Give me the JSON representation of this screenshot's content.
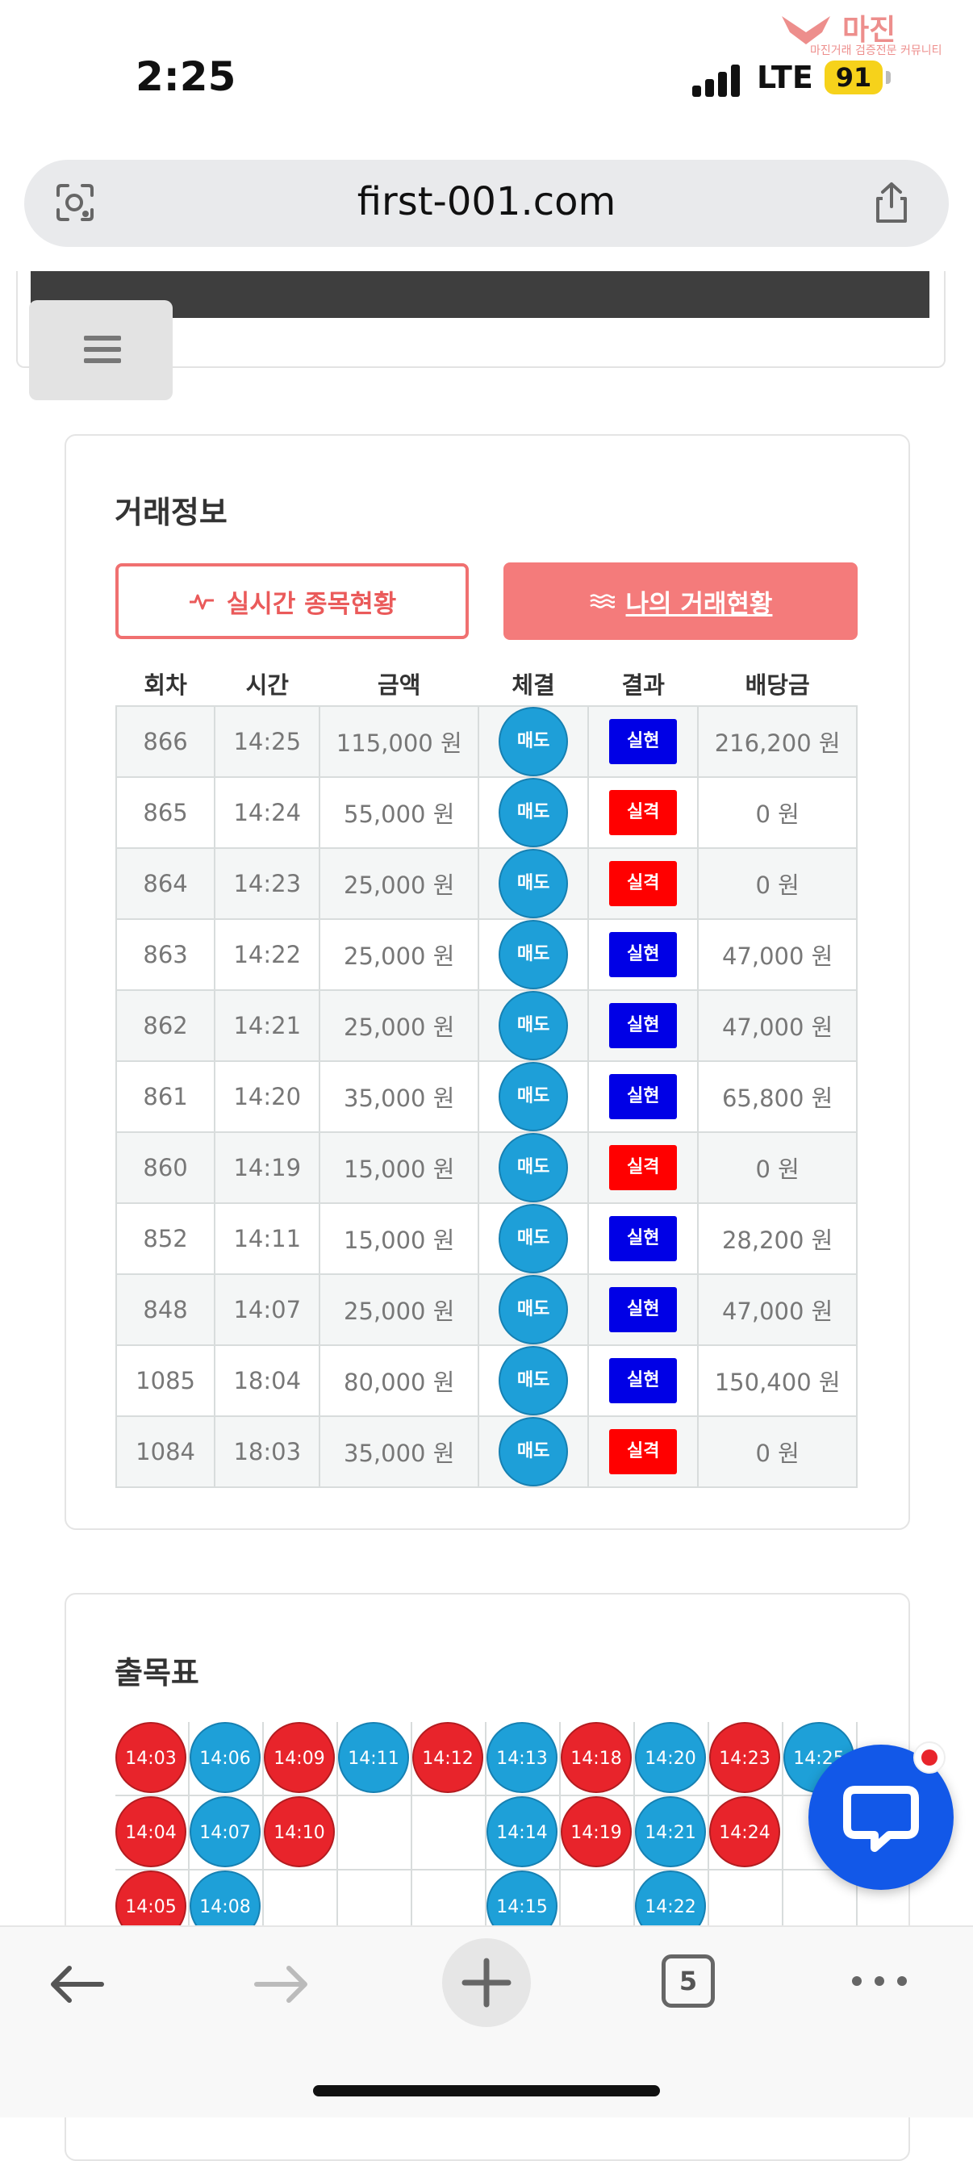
{
  "status_bar": {
    "time": "2:25",
    "network": "LTE",
    "battery": "91"
  },
  "watermark": {
    "brand": "마진",
    "tagline": "마진거래 검증전문 커뮤니티"
  },
  "browser": {
    "url": "first-001.com",
    "tab_count": "5"
  },
  "trade_info": {
    "title": "거래정보",
    "btn_live": "실시간 종목현황",
    "btn_mine": "나의 거래현황",
    "headers": [
      "회차",
      "시간",
      "금액",
      "체결",
      "결과",
      "배당금"
    ],
    "rows": [
      {
        "round": "866",
        "time": "14:25",
        "amount": "115,000 원",
        "exec": "매도",
        "result": "실현",
        "payout": "216,200 원"
      },
      {
        "round": "865",
        "time": "14:24",
        "amount": "55,000 원",
        "exec": "매도",
        "result": "실격",
        "payout": "0 원"
      },
      {
        "round": "864",
        "time": "14:23",
        "amount": "25,000 원",
        "exec": "매도",
        "result": "실격",
        "payout": "0 원"
      },
      {
        "round": "863",
        "time": "14:22",
        "amount": "25,000 원",
        "exec": "매도",
        "result": "실현",
        "payout": "47,000 원"
      },
      {
        "round": "862",
        "time": "14:21",
        "amount": "25,000 원",
        "exec": "매도",
        "result": "실현",
        "payout": "47,000 원"
      },
      {
        "round": "861",
        "time": "14:20",
        "amount": "35,000 원",
        "exec": "매도",
        "result": "실현",
        "payout": "65,800 원"
      },
      {
        "round": "860",
        "time": "14:19",
        "amount": "15,000 원",
        "exec": "매도",
        "result": "실격",
        "payout": "0 원"
      },
      {
        "round": "852",
        "time": "14:11",
        "amount": "15,000 원",
        "exec": "매도",
        "result": "실현",
        "payout": "28,200 원"
      },
      {
        "round": "848",
        "time": "14:07",
        "amount": "25,000 원",
        "exec": "매도",
        "result": "실현",
        "payout": "47,000 원"
      },
      {
        "round": "1085",
        "time": "18:04",
        "amount": "80,000 원",
        "exec": "매도",
        "result": "실현",
        "payout": "150,400 원"
      },
      {
        "round": "1084",
        "time": "18:03",
        "amount": "35,000 원",
        "exec": "매도",
        "result": "실격",
        "payout": "0 원"
      }
    ]
  },
  "colors": {
    "realized": "#0000e6",
    "failed": "#ff0000",
    "sell": "#1e9fd8",
    "accent": "#f47b7b"
  },
  "result_chart": {
    "title": "출목표",
    "columns": [
      [
        {
          "label": "14:03",
          "c": "red"
        },
        {
          "label": "14:04",
          "c": "red"
        },
        {
          "label": "14:05",
          "c": "red"
        }
      ],
      [
        {
          "label": "14:06",
          "c": "blue"
        },
        {
          "label": "14:07",
          "c": "blue"
        },
        {
          "label": "14:08",
          "c": "blue"
        }
      ],
      [
        {
          "label": "14:09",
          "c": "red"
        },
        {
          "label": "14:10",
          "c": "red"
        }
      ],
      [
        {
          "label": "14:11",
          "c": "blue"
        }
      ],
      [
        {
          "label": "14:12",
          "c": "red"
        }
      ],
      [
        {
          "label": "14:13",
          "c": "blue"
        },
        {
          "label": "14:14",
          "c": "blue"
        },
        {
          "label": "14:15",
          "c": "blue"
        }
      ],
      [
        {
          "label": "14:18",
          "c": "red"
        },
        {
          "label": "14:19",
          "c": "red"
        }
      ],
      [
        {
          "label": "14:20",
          "c": "blue"
        },
        {
          "label": "14:21",
          "c": "blue"
        },
        {
          "label": "14:22",
          "c": "blue"
        }
      ],
      [
        {
          "label": "14:23",
          "c": "red"
        },
        {
          "label": "14:24",
          "c": "red"
        }
      ],
      [
        {
          "label": "14:25",
          "c": "blue"
        }
      ]
    ]
  }
}
